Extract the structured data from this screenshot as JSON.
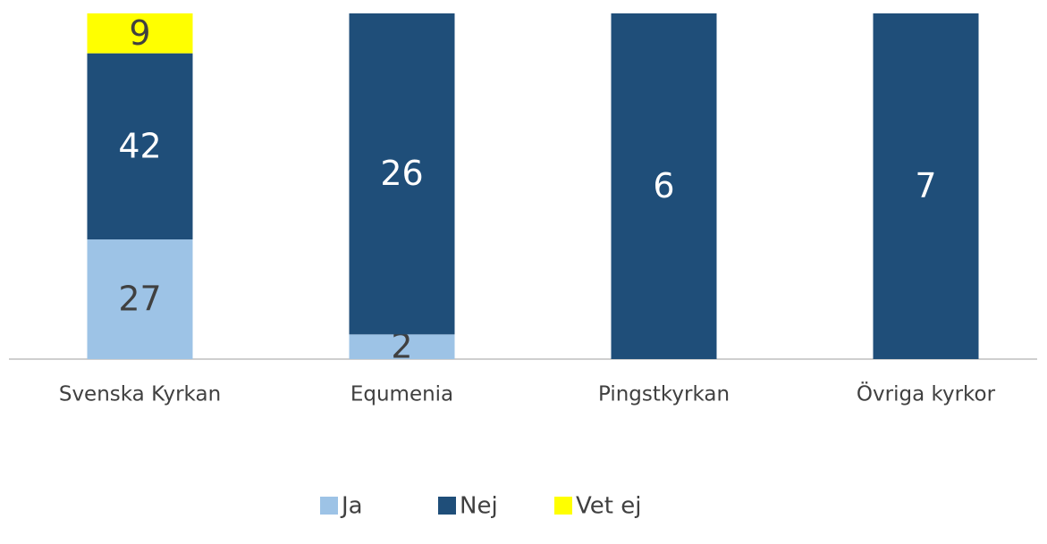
{
  "chart_data": {
    "type": "bar",
    "stacking": "percent",
    "categories": [
      "Svenska Kyrkan",
      "Equmenia",
      "Pingstkyrkan",
      "Övriga kyrkor"
    ],
    "series": [
      {
        "name": "Ja",
        "color": "#9dc3e6",
        "values": [
          27,
          2,
          null,
          null
        ]
      },
      {
        "name": "Nej",
        "color": "#1f4e79",
        "values": [
          42,
          26,
          6,
          7
        ]
      },
      {
        "name": "Vet ej",
        "color": "#ffff00",
        "values": [
          9,
          null,
          null,
          null
        ]
      }
    ],
    "legend": "bottom"
  }
}
